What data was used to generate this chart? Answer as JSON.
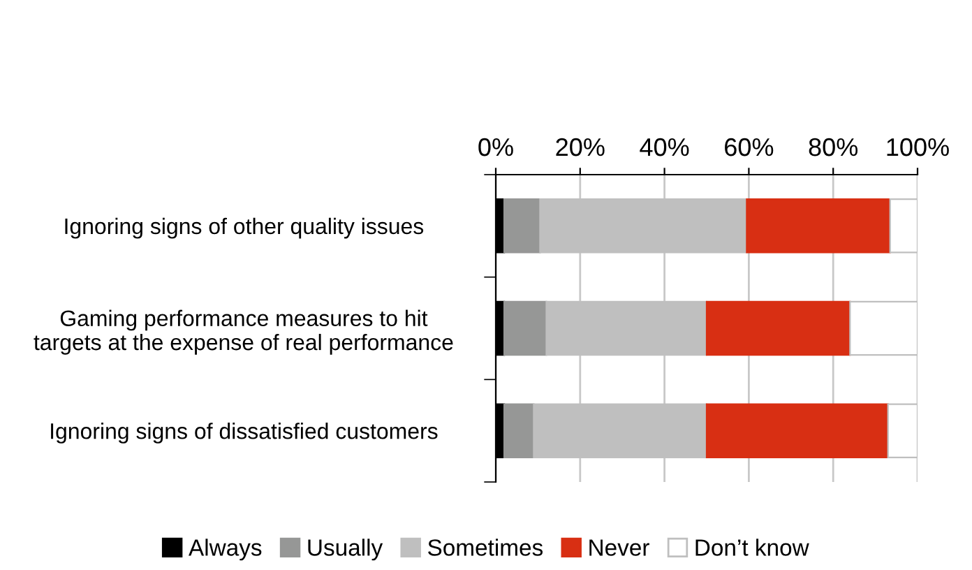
{
  "chart_data": {
    "type": "bar",
    "orientation": "horizontal",
    "stacked": true,
    "categories": [
      "Ignoring signs of other quality issues",
      "Gaming performance measures to hit\ntargets at the expense of real performance",
      "Ignoring signs of dissatisfied customers"
    ],
    "series": [
      {
        "name": "Always",
        "color": "#000000",
        "values": [
          2,
          2,
          2
        ]
      },
      {
        "name": "Usually",
        "color": "#969796",
        "values": [
          8.5,
          10,
          7
        ]
      },
      {
        "name": "Sometimes",
        "color": "#bfbfbf",
        "values": [
          49,
          38,
          41
        ]
      },
      {
        "name": "Never",
        "color": "#d82f13",
        "values": [
          34,
          34,
          43
        ]
      },
      {
        "name": "Don’t know",
        "color": "#ffffff",
        "values": [
          6.5,
          16,
          7
        ]
      }
    ],
    "xlim": [
      0,
      100
    ],
    "xticks": [
      {
        "value": 0,
        "label": "0%"
      },
      {
        "value": 20,
        "label": "20%"
      },
      {
        "value": 40,
        "label": "40%"
      },
      {
        "value": 60,
        "label": "60%"
      },
      {
        "value": 80,
        "label": "80%"
      },
      {
        "value": 100,
        "label": "100%"
      }
    ],
    "grid": "x",
    "legend": "bottom"
  }
}
